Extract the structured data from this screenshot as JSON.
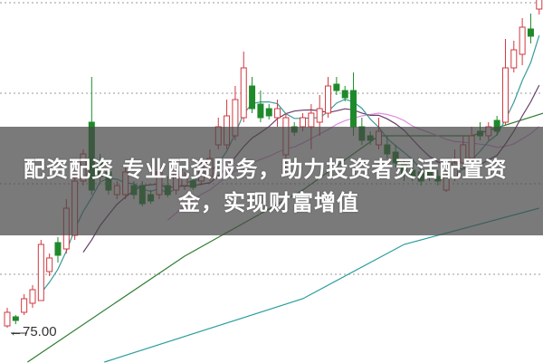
{
  "banner": {
    "line1": "配资配资 专业配资服务，助力投资者灵活配置资",
    "line2": "金，实现财富增值"
  },
  "chart_data": {
    "type": "candlestick",
    "price_label": "75.00",
    "price_label_value": 75.0,
    "ylim": [
      66.75,
      167
    ],
    "gridlines": [
      166.25,
      141.25,
      116.25,
      91.25
    ],
    "grid": "dotted horizontal",
    "colors": {
      "up": "#d0383f",
      "down": "#1f8a2a",
      "ma5": "#3a9a9a",
      "ma10": "#6a3d6a",
      "ma20": "#e08ee0",
      "long_green": "#2e7d32",
      "long_teal": "#2a9d9d",
      "grid": "#999999"
    },
    "candles": [
      [
        77,
        82,
        76.5,
        80.75
      ],
      [
        79.5,
        80,
        77.5,
        78.5
      ],
      [
        80.75,
        85.75,
        80,
        84.5
      ],
      [
        83.25,
        88.25,
        82,
        87
      ],
      [
        84,
        100.75,
        84,
        99.5
      ],
      [
        92,
        97,
        90.75,
        95.75
      ],
      [
        100,
        101.5,
        94.5,
        96.5
      ],
      [
        98.25,
        112,
        97,
        109.5
      ],
      [
        102,
        118.25,
        100.75,
        117
      ],
      [
        117,
        125.75,
        115.75,
        124.5
      ],
      [
        133.25,
        145.75,
        113.25,
        114.5
      ],
      [
        122,
        124.5,
        117,
        118.25
      ],
      [
        119.5,
        120.75,
        113.25,
        114.5
      ],
      [
        113.25,
        117,
        112,
        115.75
      ],
      [
        113.25,
        120.75,
        112,
        119.5
      ],
      [
        115.75,
        117,
        112,
        113.25
      ],
      [
        115.75,
        117,
        110,
        110.75
      ],
      [
        113.25,
        114.5,
        110.75,
        111.5
      ],
      [
        113.25,
        123.25,
        112,
        119.5
      ],
      [
        115.75,
        118.25,
        112.5,
        113.25
      ],
      [
        114.5,
        120.75,
        113.25,
        119.5
      ],
      [
        115.75,
        119.5,
        114.5,
        118.25
      ],
      [
        117,
        118.25,
        114.5,
        115.25
      ],
      [
        117,
        122,
        115.75,
        120.75
      ],
      [
        118.25,
        125.75,
        117,
        123.25
      ],
      [
        127,
        134.5,
        125.75,
        132
      ],
      [
        127,
        139.5,
        125.75,
        135
      ],
      [
        129.5,
        143.25,
        128.25,
        139.5
      ],
      [
        134.5,
        152.75,
        133.25,
        148.25
      ],
      [
        143.25,
        145.75,
        135.75,
        137
      ],
      [
        138.25,
        142,
        133.25,
        134.5
      ],
      [
        137,
        138.25,
        134,
        135
      ],
      [
        134.5,
        139.5,
        132,
        137
      ],
      [
        124.25,
        135.75,
        119.5,
        134.5
      ],
      [
        132,
        133.25,
        129.5,
        130.5
      ],
      [
        132,
        135.75,
        130.75,
        134.5
      ],
      [
        132,
        138.25,
        125.75,
        135.75
      ],
      [
        133.25,
        140.75,
        129.5,
        137
      ],
      [
        135.75,
        145.75,
        134.5,
        143.25
      ],
      [
        143.75,
        145.75,
        140.75,
        142
      ],
      [
        142,
        143.25,
        139,
        140
      ],
      [
        142,
        147,
        129.5,
        132
      ],
      [
        132,
        134.5,
        127,
        128.25
      ],
      [
        129.5,
        130.75,
        127,
        128.25
      ],
      [
        127,
        134.5,
        125.75,
        130.75
      ],
      [
        127,
        129.5,
        123.25,
        124.5
      ],
      [
        125,
        127,
        120.75,
        122
      ],
      [
        122,
        123.25,
        117,
        119
      ],
      [
        120,
        122,
        117,
        118.25
      ],
      [
        119.5,
        120.75,
        115.75,
        117
      ],
      [
        119.5,
        120.75,
        117,
        118
      ],
      [
        118.25,
        120,
        115.75,
        117
      ],
      [
        114.5,
        120.75,
        114,
        118.25
      ],
      [
        118.25,
        125.75,
        117,
        122
      ],
      [
        122,
        129.5,
        120.75,
        127
      ],
      [
        123.25,
        132,
        122,
        129.5
      ],
      [
        130.75,
        133.25,
        128.25,
        129.5
      ],
      [
        129.5,
        133.25,
        128.25,
        132
      ],
      [
        133.75,
        135,
        129.5,
        130.75
      ],
      [
        133.25,
        156.25,
        132.5,
        148.25
      ],
      [
        148.25,
        155.75,
        147,
        153.25
      ],
      [
        152,
        162,
        149,
        159.5
      ],
      [
        159,
        163.25,
        155,
        157
      ],
      [
        164.5,
        170,
        163,
        168
      ]
    ],
    "long_lines": {
      "green": [
        [
          2.4,
          67
        ],
        [
          21,
          96.25
        ],
        [
          35,
          114.5
        ],
        [
          44,
          129.5
        ],
        [
          55,
          129.5
        ],
        [
          63.5,
          135.75
        ]
      ],
      "teal": [
        [
          11.5,
          67
        ],
        [
          35,
          84.5
        ],
        [
          47,
          99.5
        ],
        [
          63,
          109.5
        ]
      ]
    }
  }
}
